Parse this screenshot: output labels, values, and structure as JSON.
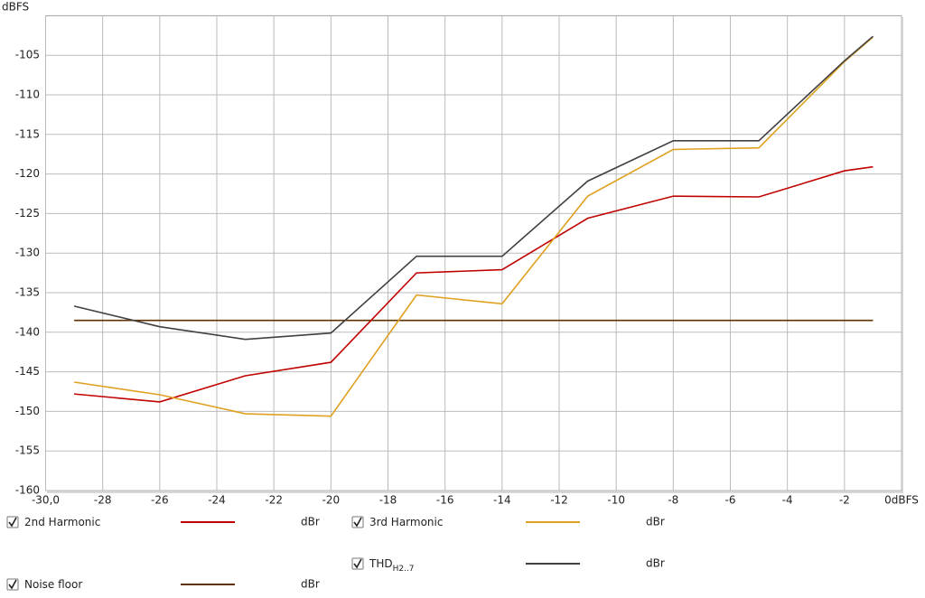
{
  "chart_data": {
    "type": "line",
    "ylabel": "dBFS",
    "x": [
      -29,
      -26,
      -23,
      -20,
      -17,
      -14,
      -11,
      -8,
      -5,
      -2,
      -1
    ],
    "xlim": [
      -30,
      0
    ],
    "xticks": [
      {
        "value": -30,
        "label": "-30,0"
      },
      -28,
      -26,
      -24,
      -22,
      -20,
      -18,
      -16,
      -14,
      -12,
      -10,
      -8,
      -6,
      -4,
      -2,
      {
        "value": 0,
        "label": "0dBFS"
      }
    ],
    "ylim": [
      -160,
      -100
    ],
    "yticks": [
      -105,
      -110,
      -115,
      -120,
      -125,
      -130,
      -135,
      -140,
      -145,
      -150,
      -155,
      -160
    ],
    "grid": true,
    "series": [
      {
        "name": "2nd Harmonic",
        "unit": "dBr",
        "color": "#c00000",
        "text_color": "#b02020",
        "values": [
          -147.8,
          -148.8,
          -145.5,
          -143.8,
          -132.5,
          -132.1,
          -125.6,
          -122.8,
          -122.9,
          -119.6,
          -119.1
        ]
      },
      {
        "name": "3rd Harmonic",
        "unit": "dBr",
        "color": "#e0a020",
        "text_color": "#d09a30",
        "values": [
          -146.3,
          -147.9,
          -150.3,
          -150.6,
          -135.3,
          -136.4,
          -122.8,
          -116.9,
          -116.7,
          -105.8,
          -102.7
        ]
      },
      {
        "name": "THD",
        "subscript": "H2..7",
        "unit": "dBr",
        "color": "#404040",
        "text_color": "#404040",
        "values": [
          -136.7,
          -139.3,
          -140.9,
          -140.1,
          -130.4,
          -130.4,
          -120.9,
          -115.8,
          -115.8,
          -105.7,
          -102.6
        ]
      },
      {
        "name": "Noise floor",
        "unit": "dBr",
        "color": "#603000",
        "text_color": "#804020",
        "values": [
          -138.5,
          -138.5,
          -138.5,
          -138.5,
          -138.5,
          -138.5,
          -138.5,
          -138.5,
          -138.5,
          -138.5,
          -138.5
        ]
      }
    ]
  }
}
